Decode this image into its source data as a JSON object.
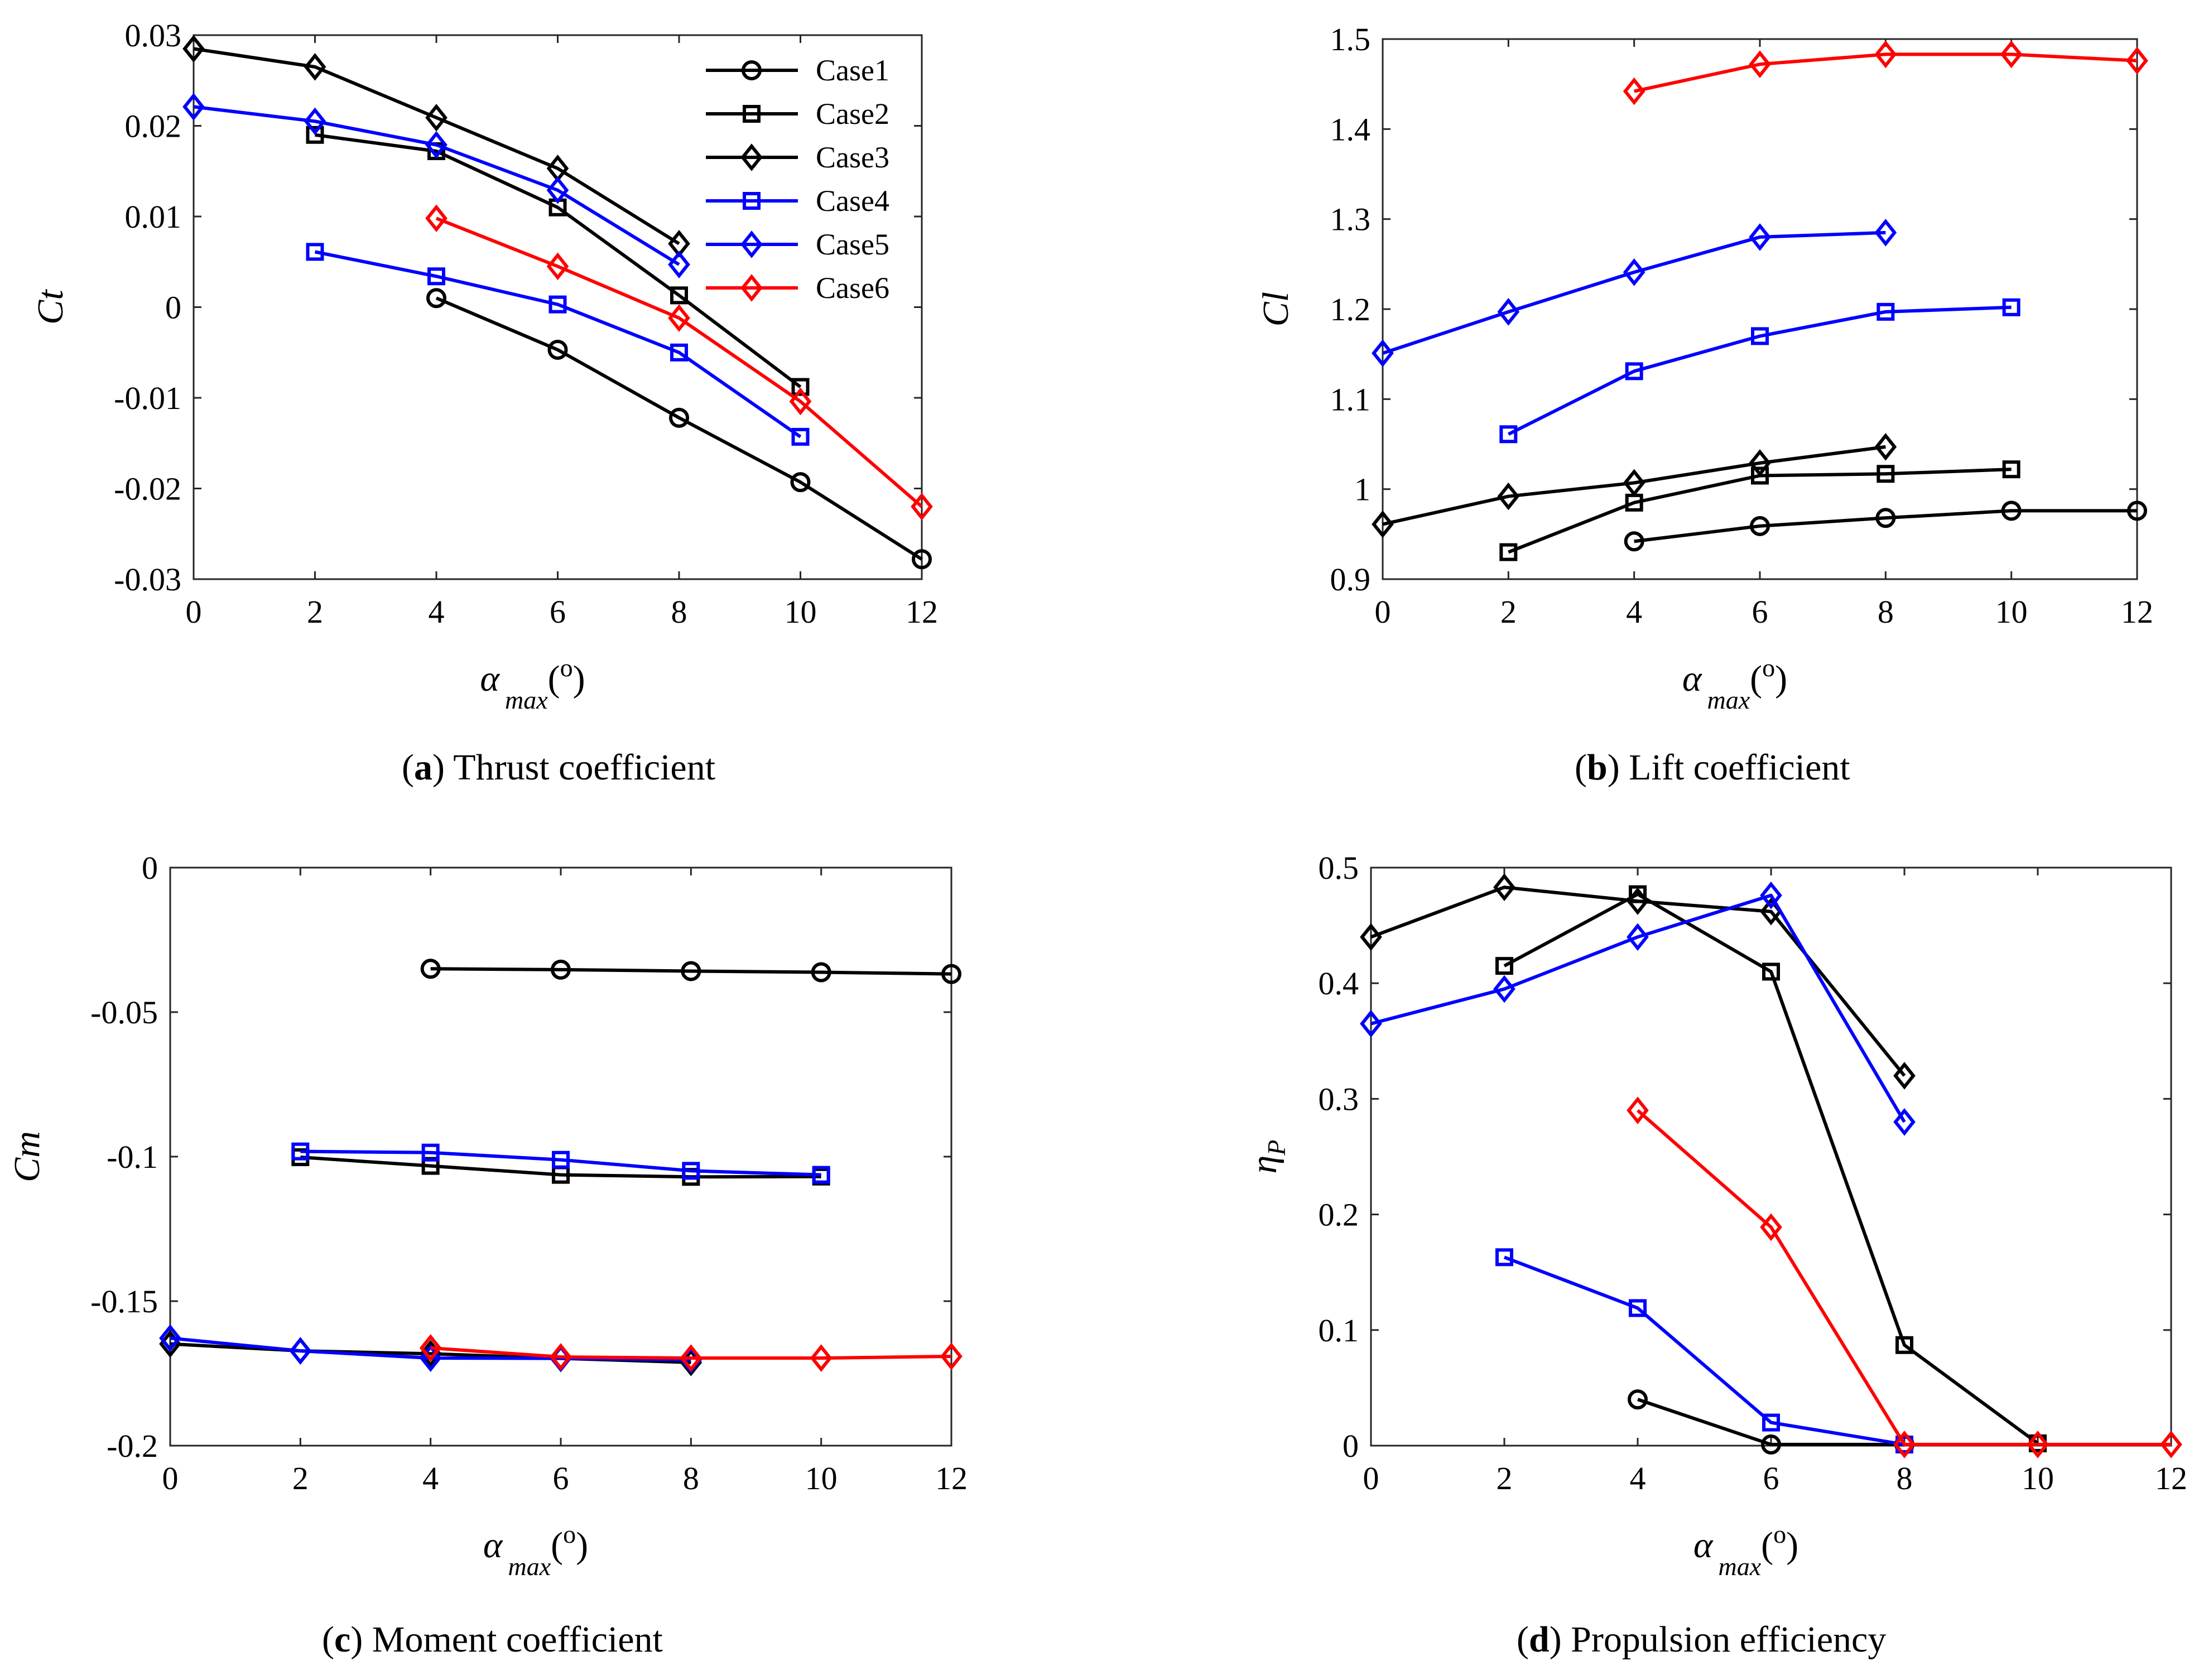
{
  "colors": {
    "black": "#000000",
    "blue": "#0000ff",
    "red": "#ff0000"
  },
  "legend": [
    {
      "name": "Case1",
      "marker": "circle",
      "color": "#000000"
    },
    {
      "name": "Case2",
      "marker": "square",
      "color": "#000000"
    },
    {
      "name": "Case3",
      "marker": "diamond",
      "color": "#000000"
    },
    {
      "name": "Case4",
      "marker": "square",
      "color": "#0000ff"
    },
    {
      "name": "Case5",
      "marker": "diamond",
      "color": "#0000ff"
    },
    {
      "name": "Case6",
      "marker": "diamond",
      "color": "#ff0000"
    }
  ],
  "chart_data": [
    {
      "type": "line",
      "caption_letter": "a",
      "caption_text": ") Thrust coefficient",
      "ylabel": "Ct",
      "xlabel_main": "α",
      "xlabel_sub": "max",
      "xlabel_paren": "(",
      "xlabel_sup": "o",
      "xlabel_close": ")",
      "xlim": [
        0,
        12
      ],
      "ylim": [
        -0.03,
        0.03
      ],
      "xticks": [
        0,
        2,
        4,
        6,
        8,
        10,
        12
      ],
      "yticks": [
        -0.03,
        -0.02,
        -0.01,
        0,
        0.01,
        0.02,
        0.03
      ],
      "ytick_labels": [
        "-0.03",
        "-0.02",
        "-0.01",
        "0",
        "0.01",
        "0.02",
        "0.03"
      ],
      "legend_location": "top-right",
      "series": [
        {
          "name": "Case1",
          "marker": "circle",
          "color": "#000000",
          "x": [
            4,
            6,
            8,
            10,
            12
          ],
          "y": [
            0.001,
            -0.0047,
            -0.0122,
            -0.0193,
            -0.0278
          ]
        },
        {
          "name": "Case2",
          "marker": "square",
          "color": "#000000",
          "x": [
            2,
            4,
            6,
            8,
            10
          ],
          "y": [
            0.019,
            0.0172,
            0.011,
            0.0013,
            -0.0088
          ]
        },
        {
          "name": "Case3",
          "marker": "diamond",
          "color": "#000000",
          "x": [
            0,
            2,
            4,
            6,
            8
          ],
          "y": [
            0.0285,
            0.0265,
            0.0209,
            0.0153,
            0.007
          ]
        },
        {
          "name": "Case4",
          "marker": "square",
          "color": "#0000ff",
          "x": [
            2,
            4,
            6,
            8,
            10
          ],
          "y": [
            0.0061,
            0.0034,
            0.0003,
            -0.005,
            -0.0143
          ]
        },
        {
          "name": "Case5",
          "marker": "diamond",
          "color": "#0000ff",
          "x": [
            0,
            2,
            4,
            6,
            8
          ],
          "y": [
            0.0221,
            0.0205,
            0.0179,
            0.0129,
            0.0047
          ]
        },
        {
          "name": "Case6",
          "marker": "diamond",
          "color": "#ff0000",
          "x": [
            4,
            6,
            8,
            10,
            12
          ],
          "y": [
            0.0098,
            0.0045,
            -0.0012,
            -0.0104,
            -0.022
          ]
        }
      ]
    },
    {
      "type": "line",
      "caption_letter": "b",
      "caption_text": ") Lift coefficient",
      "ylabel": "Cl",
      "xlabel_main": "α",
      "xlabel_sub": "max",
      "xlabel_paren": "(",
      "xlabel_sup": "o",
      "xlabel_close": ")",
      "xlim": [
        0,
        12
      ],
      "ylim": [
        0.9,
        1.5
      ],
      "xticks": [
        0,
        2,
        4,
        6,
        8,
        10,
        12
      ],
      "yticks": [
        0.9,
        1.0,
        1.1,
        1.2,
        1.3,
        1.4,
        1.5
      ],
      "ytick_labels": [
        "0.9",
        "1",
        "1.1",
        "1.2",
        "1.3",
        "1.4",
        "1.5"
      ],
      "series": [
        {
          "name": "Case1",
          "marker": "circle",
          "color": "#000000",
          "x": [
            4,
            6,
            8,
            10,
            12
          ],
          "y": [
            0.942,
            0.959,
            0.968,
            0.976,
            0.976
          ]
        },
        {
          "name": "Case2",
          "marker": "square",
          "color": "#000000",
          "x": [
            2,
            4,
            6,
            8,
            10
          ],
          "y": [
            0.93,
            0.985,
            1.015,
            1.017,
            1.022
          ]
        },
        {
          "name": "Case3",
          "marker": "diamond",
          "color": "#000000",
          "x": [
            0,
            2,
            4,
            6,
            8
          ],
          "y": [
            0.961,
            0.992,
            1.007,
            1.029,
            1.047
          ]
        },
        {
          "name": "Case4",
          "marker": "square",
          "color": "#0000ff",
          "x": [
            2,
            4,
            6,
            8,
            10
          ],
          "y": [
            1.061,
            1.131,
            1.17,
            1.197,
            1.202
          ]
        },
        {
          "name": "Case5",
          "marker": "diamond",
          "color": "#0000ff",
          "x": [
            0,
            2,
            4,
            6,
            8
          ],
          "y": [
            1.151,
            1.197,
            1.241,
            1.28,
            1.285
          ]
        },
        {
          "name": "Case6",
          "marker": "diamond",
          "color": "#ff0000",
          "x": [
            4,
            6,
            8,
            10,
            12
          ],
          "y": [
            1.442,
            1.472,
            1.483,
            1.483,
            1.476
          ]
        }
      ]
    },
    {
      "type": "line",
      "caption_letter": "c",
      "caption_text": ") Moment coefficient",
      "ylabel": "Cm",
      "xlabel_main": "α",
      "xlabel_sub": "max",
      "xlabel_paren": "(",
      "xlabel_sup": "o",
      "xlabel_close": ")",
      "xlim": [
        0,
        12
      ],
      "ylim": [
        -0.2,
        0
      ],
      "xticks": [
        0,
        2,
        4,
        6,
        8,
        10,
        12
      ],
      "yticks": [
        -0.2,
        -0.15,
        -0.1,
        -0.05,
        0
      ],
      "ytick_labels": [
        "-0.2",
        "-0.15",
        "-0.1",
        "-0.05",
        "0"
      ],
      "series": [
        {
          "name": "Case1",
          "marker": "circle",
          "color": "#000000",
          "x": [
            4,
            6,
            8,
            10,
            12
          ],
          "y": [
            -0.035,
            -0.0353,
            -0.0358,
            -0.0362,
            -0.0368
          ]
        },
        {
          "name": "Case2",
          "marker": "square",
          "color": "#000000",
          "x": [
            2,
            4,
            6,
            8,
            10
          ],
          "y": [
            -0.1002,
            -0.1032,
            -0.1063,
            -0.107,
            -0.1069
          ]
        },
        {
          "name": "Case3",
          "marker": "diamond",
          "color": "#000000",
          "x": [
            0,
            2,
            4,
            6,
            8
          ],
          "y": [
            -0.1648,
            -0.1672,
            -0.1682,
            -0.1698,
            -0.1712
          ]
        },
        {
          "name": "Case4",
          "marker": "square",
          "color": "#0000ff",
          "x": [
            2,
            4,
            6,
            8,
            10
          ],
          "y": [
            -0.0982,
            -0.0986,
            -0.1011,
            -0.1049,
            -0.1063
          ]
        },
        {
          "name": "Case5",
          "marker": "diamond",
          "color": "#0000ff",
          "x": [
            0,
            2,
            4,
            6,
            8
          ],
          "y": [
            -0.1628,
            -0.1672,
            -0.1697,
            -0.1698,
            -0.1703
          ]
        },
        {
          "name": "Case6",
          "marker": "diamond",
          "color": "#ff0000",
          "x": [
            4,
            6,
            8,
            10,
            12
          ],
          "y": [
            -0.1662,
            -0.1693,
            -0.1697,
            -0.1697,
            -0.1691
          ]
        }
      ]
    },
    {
      "type": "line",
      "caption_letter": "d",
      "caption_text": ") Propulsion efficiency",
      "ylabel": "η",
      "ylabel_sub": "P",
      "xlabel_main": "α",
      "xlabel_sub": "max",
      "xlabel_paren": "(",
      "xlabel_sup": "o",
      "xlabel_close": ")",
      "xlim": [
        0,
        12
      ],
      "ylim": [
        0,
        0.5
      ],
      "xticks": [
        0,
        2,
        4,
        6,
        8,
        10,
        12
      ],
      "yticks": [
        0,
        0.1,
        0.2,
        0.3,
        0.4,
        0.5
      ],
      "ytick_labels": [
        "0",
        "0.1",
        "0.2",
        "0.3",
        "0.4",
        "0.5"
      ],
      "series": [
        {
          "name": "Case1",
          "marker": "circle",
          "color": "#000000",
          "x": [
            4,
            6,
            8
          ],
          "y": [
            0.04,
            0.001,
            0.001
          ]
        },
        {
          "name": "Case2",
          "marker": "square",
          "color": "#000000",
          "x": [
            2,
            4,
            6,
            8,
            10
          ],
          "y": [
            0.415,
            0.477,
            0.41,
            0.087,
            0.002
          ]
        },
        {
          "name": "Case3",
          "marker": "diamond",
          "color": "#000000",
          "x": [
            0,
            2,
            4,
            6,
            8
          ],
          "y": [
            0.44,
            0.483,
            0.471,
            0.462,
            0.32
          ]
        },
        {
          "name": "Case4",
          "marker": "square",
          "color": "#0000ff",
          "x": [
            2,
            4,
            6,
            8
          ],
          "y": [
            0.163,
            0.119,
            0.02,
            0.001
          ]
        },
        {
          "name": "Case5",
          "marker": "diamond",
          "color": "#0000ff",
          "x": [
            0,
            2,
            4,
            6,
            8
          ],
          "y": [
            0.365,
            0.395,
            0.44,
            0.476,
            0.28
          ]
        },
        {
          "name": "Case6",
          "marker": "diamond",
          "color": "#ff0000",
          "x": [
            4,
            6,
            8,
            10,
            12
          ],
          "y": [
            0.29,
            0.189,
            0.001,
            0.001,
            0.001
          ]
        }
      ]
    }
  ]
}
